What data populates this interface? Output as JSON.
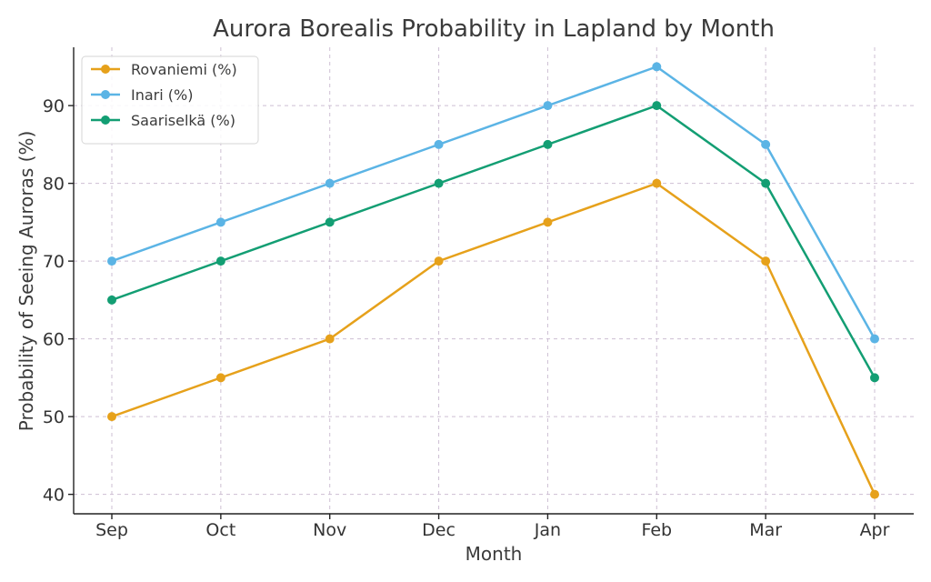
{
  "chart_data": {
    "type": "line",
    "title": "Aurora Borealis Probability in Lapland by Month",
    "xlabel": "Month",
    "ylabel": "Probability of Seeing Auroras (%)",
    "categories": [
      "Sep",
      "Oct",
      "Nov",
      "Dec",
      "Jan",
      "Feb",
      "Mar",
      "Apr"
    ],
    "ylim": [
      37.5,
      97.5
    ],
    "yticks": [
      40,
      50,
      60,
      70,
      80,
      90
    ],
    "grid": true,
    "legend_position": "top-left",
    "series": [
      {
        "name": "Rovaniemi (%)",
        "color": "#e6a11b",
        "values": [
          50,
          55,
          60,
          70,
          75,
          80,
          70,
          40
        ]
      },
      {
        "name": "Inari (%)",
        "color": "#5bb4e5",
        "values": [
          70,
          75,
          80,
          85,
          90,
          95,
          85,
          60
        ]
      },
      {
        "name": "Saariselkä (%)",
        "color": "#139e73",
        "values": [
          65,
          70,
          75,
          80,
          85,
          90,
          80,
          55
        ]
      }
    ]
  }
}
